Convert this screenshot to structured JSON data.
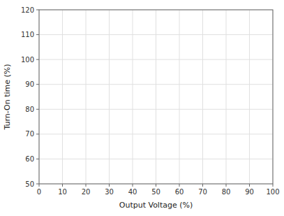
{
  "chart_data": {
    "type": "line",
    "xlabel": "Output Voltage (%)",
    "ylabel": "Turn-On time (%)",
    "xlim": [
      0,
      100
    ],
    "ylim": [
      50,
      120
    ],
    "xticks": [
      0,
      10,
      20,
      30,
      40,
      50,
      60,
      70,
      80,
      90,
      100
    ],
    "yticks": [
      50,
      60,
      70,
      80,
      90,
      100,
      110,
      120
    ],
    "grid": true
  }
}
